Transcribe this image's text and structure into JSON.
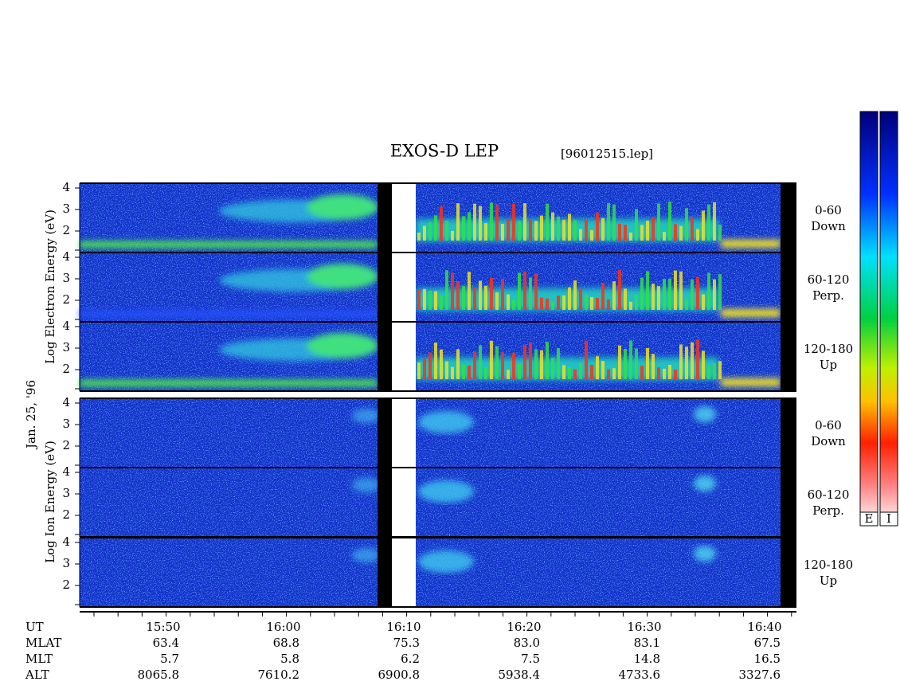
{
  "header": {
    "title": "EXOS-D LEP",
    "file": "[96012515.lep]",
    "date": "Jan. 25, '96"
  },
  "axes": {
    "electron_label": "Log Electron Energy (eV)",
    "ion_label": "Log Ion Energy (eV)",
    "energy_ticks": [
      "4",
      "3",
      "2"
    ]
  },
  "pitch_angles": [
    {
      "range": "0-60",
      "label": "Down"
    },
    {
      "range": "60-120",
      "label": "Perp."
    },
    {
      "range": "120-180",
      "label": "Up"
    }
  ],
  "orbit": {
    "rows": [
      {
        "name": "UT",
        "values": [
          "15:50",
          "16:00",
          "16:10",
          "16:20",
          "16:30",
          "16:40"
        ]
      },
      {
        "name": "MLAT",
        "values": [
          "63.4",
          "68.8",
          "75.3",
          "83.0",
          "83.1",
          "67.5"
        ]
      },
      {
        "name": "MLT",
        "values": [
          "5.7",
          "5.8",
          "6.2",
          "7.5",
          "14.8",
          "16.5"
        ]
      },
      {
        "name": "ALT",
        "values": [
          "8065.8",
          "7610.2",
          "6900.8",
          "5938.4",
          "4733.6",
          "3327.6"
        ]
      }
    ]
  },
  "colorbar": {
    "labels": [
      "E",
      "I"
    ]
  }
}
